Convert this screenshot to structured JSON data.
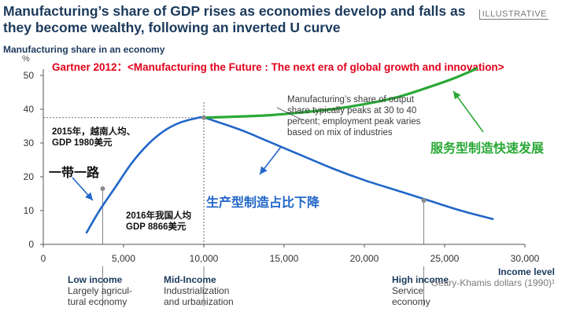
{
  "header": {
    "title": "Manufacturing’s share of GDP rises as economies develop and falls as they become wealthy, following an inverted U curve",
    "badge": "ILLUSTRATIVE"
  },
  "colors": {
    "blue_curve": "#2166c8",
    "green_curve": "#2aa836",
    "red_note": "#e2001a",
    "axis": "#555555",
    "title": "#1b3a5c"
  },
  "chart_data": {
    "type": "line",
    "ylabel": "Manufacturing share in an economy",
    "yunit": "%",
    "xlabel": "Income level",
    "xlabel_unit": "Geary-Khamis dollars (1990)¹",
    "xlim": [
      0,
      30000
    ],
    "ylim": [
      0,
      50
    ],
    "x_ticks": [
      "0",
      "5,000",
      "10,000",
      "15,000",
      "20,000",
      "25,000",
      "30,000"
    ],
    "y_ticks": [
      "0",
      "10",
      "20",
      "30",
      "40",
      "50"
    ],
    "series": [
      {
        "color": "blue",
        "x": [
          2700,
          3500,
          4500,
          5500,
          6500,
          7500,
          8500,
          9500,
          10000,
          11000,
          12500,
          14000,
          16000,
          18000,
          20000,
          22000,
          24000,
          26000,
          28000
        ],
        "y": [
          3.5,
          10,
          17,
          24,
          29.5,
          33.5,
          36,
          37.3,
          37.5,
          36,
          33.5,
          30.5,
          26.5,
          22.5,
          19,
          16,
          13,
          10,
          7.5
        ]
      },
      {
        "color": "green",
        "x": [
          10000,
          12000,
          14000,
          16000,
          18000,
          20000,
          22000,
          24000,
          25500,
          27000
        ],
        "y": [
          37.5,
          37.8,
          38.2,
          39,
          40,
          41.5,
          43.5,
          46.5,
          49,
          52
        ]
      }
    ],
    "points": [
      {
        "x": 3700,
        "y": 16.5
      },
      {
        "x": 10000,
        "y": 37.5
      },
      {
        "x": 23700,
        "y": 13
      }
    ],
    "reference_line_y": 37.5,
    "annotations": {
      "red_note": "Gartner 2012：<Manufacturing the Future : The next era of global growth and innovation>",
      "peak_note": "Manufacturing’s share of output\nshare typically peaks at 30 to 40\npercent; employment peak varies\nbased on mix of industries",
      "green_label": "服务型制造快速发展",
      "blue_label": "生产型制造占比下降",
      "vietnam_note": "2015年，越南人均、\nGDP 1980美元",
      "obor_label": "一带一路",
      "china_note": "2016年我国人均\nGDP 8866美元"
    },
    "stages": [
      {
        "title": "Low income",
        "desc": "Largely agricul-\ntural economy"
      },
      {
        "title": "Mid-Income",
        "desc": "Industrialization\nand urbanization"
      },
      {
        "title": "High income",
        "desc": "Service\neconomy"
      }
    ]
  }
}
